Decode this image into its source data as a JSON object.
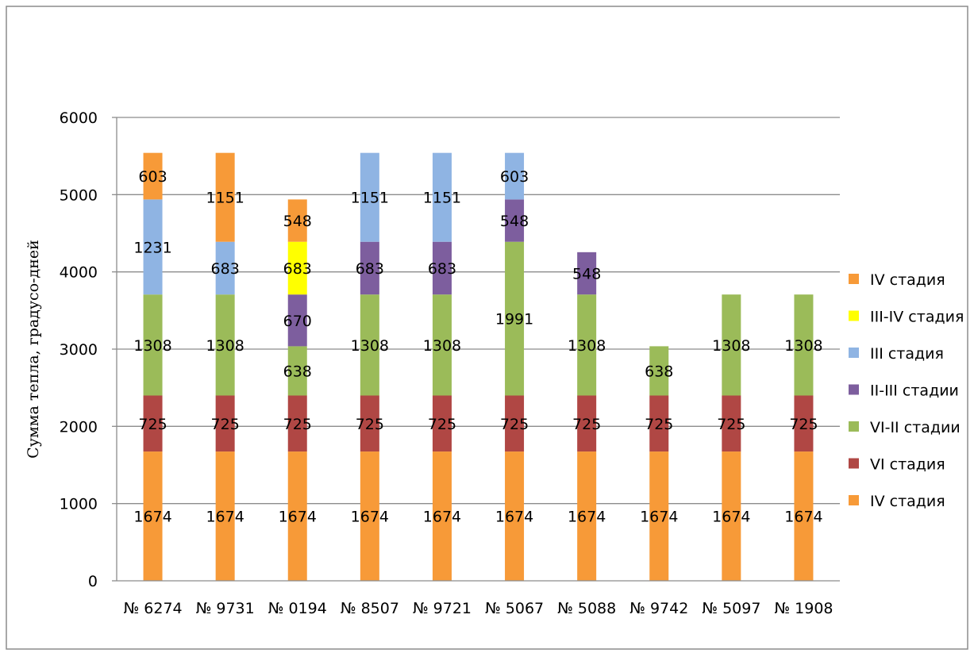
{
  "chart_data": {
    "type": "bar",
    "stacked": true,
    "xlabel": "",
    "ylabel": "Сумма тепла,  градусо-дней",
    "ylim": [
      0,
      6000
    ],
    "yticks": [
      0,
      1000,
      2000,
      3000,
      4000,
      5000,
      6000
    ],
    "grid": true,
    "legend_position": "right",
    "categories": [
      "№ 6274",
      "№ 9731",
      "№ 0194",
      "№ 8507",
      "№ 9721",
      "№ 5067",
      "№ 5088",
      "№ 9742",
      "№ 5097",
      "№ 1908"
    ],
    "series": [
      {
        "name": "IV стадия",
        "color": "#F79A38",
        "values": [
          1674,
          1674,
          1674,
          1674,
          1674,
          1674,
          1674,
          1674,
          1674,
          1674
        ]
      },
      {
        "name": "VI стадия",
        "color": "#B04744",
        "values": [
          725,
          725,
          725,
          725,
          725,
          725,
          725,
          725,
          725,
          725
        ]
      },
      {
        "name": "VI-II стадии",
        "color": "#9BBB59",
        "values": [
          1308,
          1308,
          638,
          1308,
          1308,
          1991,
          1308,
          638,
          1308,
          1308
        ]
      },
      {
        "name": "II-III стадии",
        "color": "#7D5E9E",
        "values": [
          0,
          0,
          670,
          683,
          683,
          548,
          548,
          0,
          0,
          0
        ]
      },
      {
        "name": "III стадия",
        "color": "#8FB4E3",
        "values": [
          1231,
          683,
          0,
          1151,
          1151,
          603,
          0,
          0,
          0,
          0
        ]
      },
      {
        "name": "III-IV стадия",
        "color": "#FFFF00",
        "values": [
          0,
          0,
          683,
          0,
          0,
          0,
          0,
          0,
          0,
          0
        ]
      },
      {
        "name": "IV стадия",
        "color": "#F79A38",
        "values": [
          603,
          1151,
          548,
          0,
          0,
          0,
          0,
          0,
          0,
          0
        ]
      }
    ]
  }
}
